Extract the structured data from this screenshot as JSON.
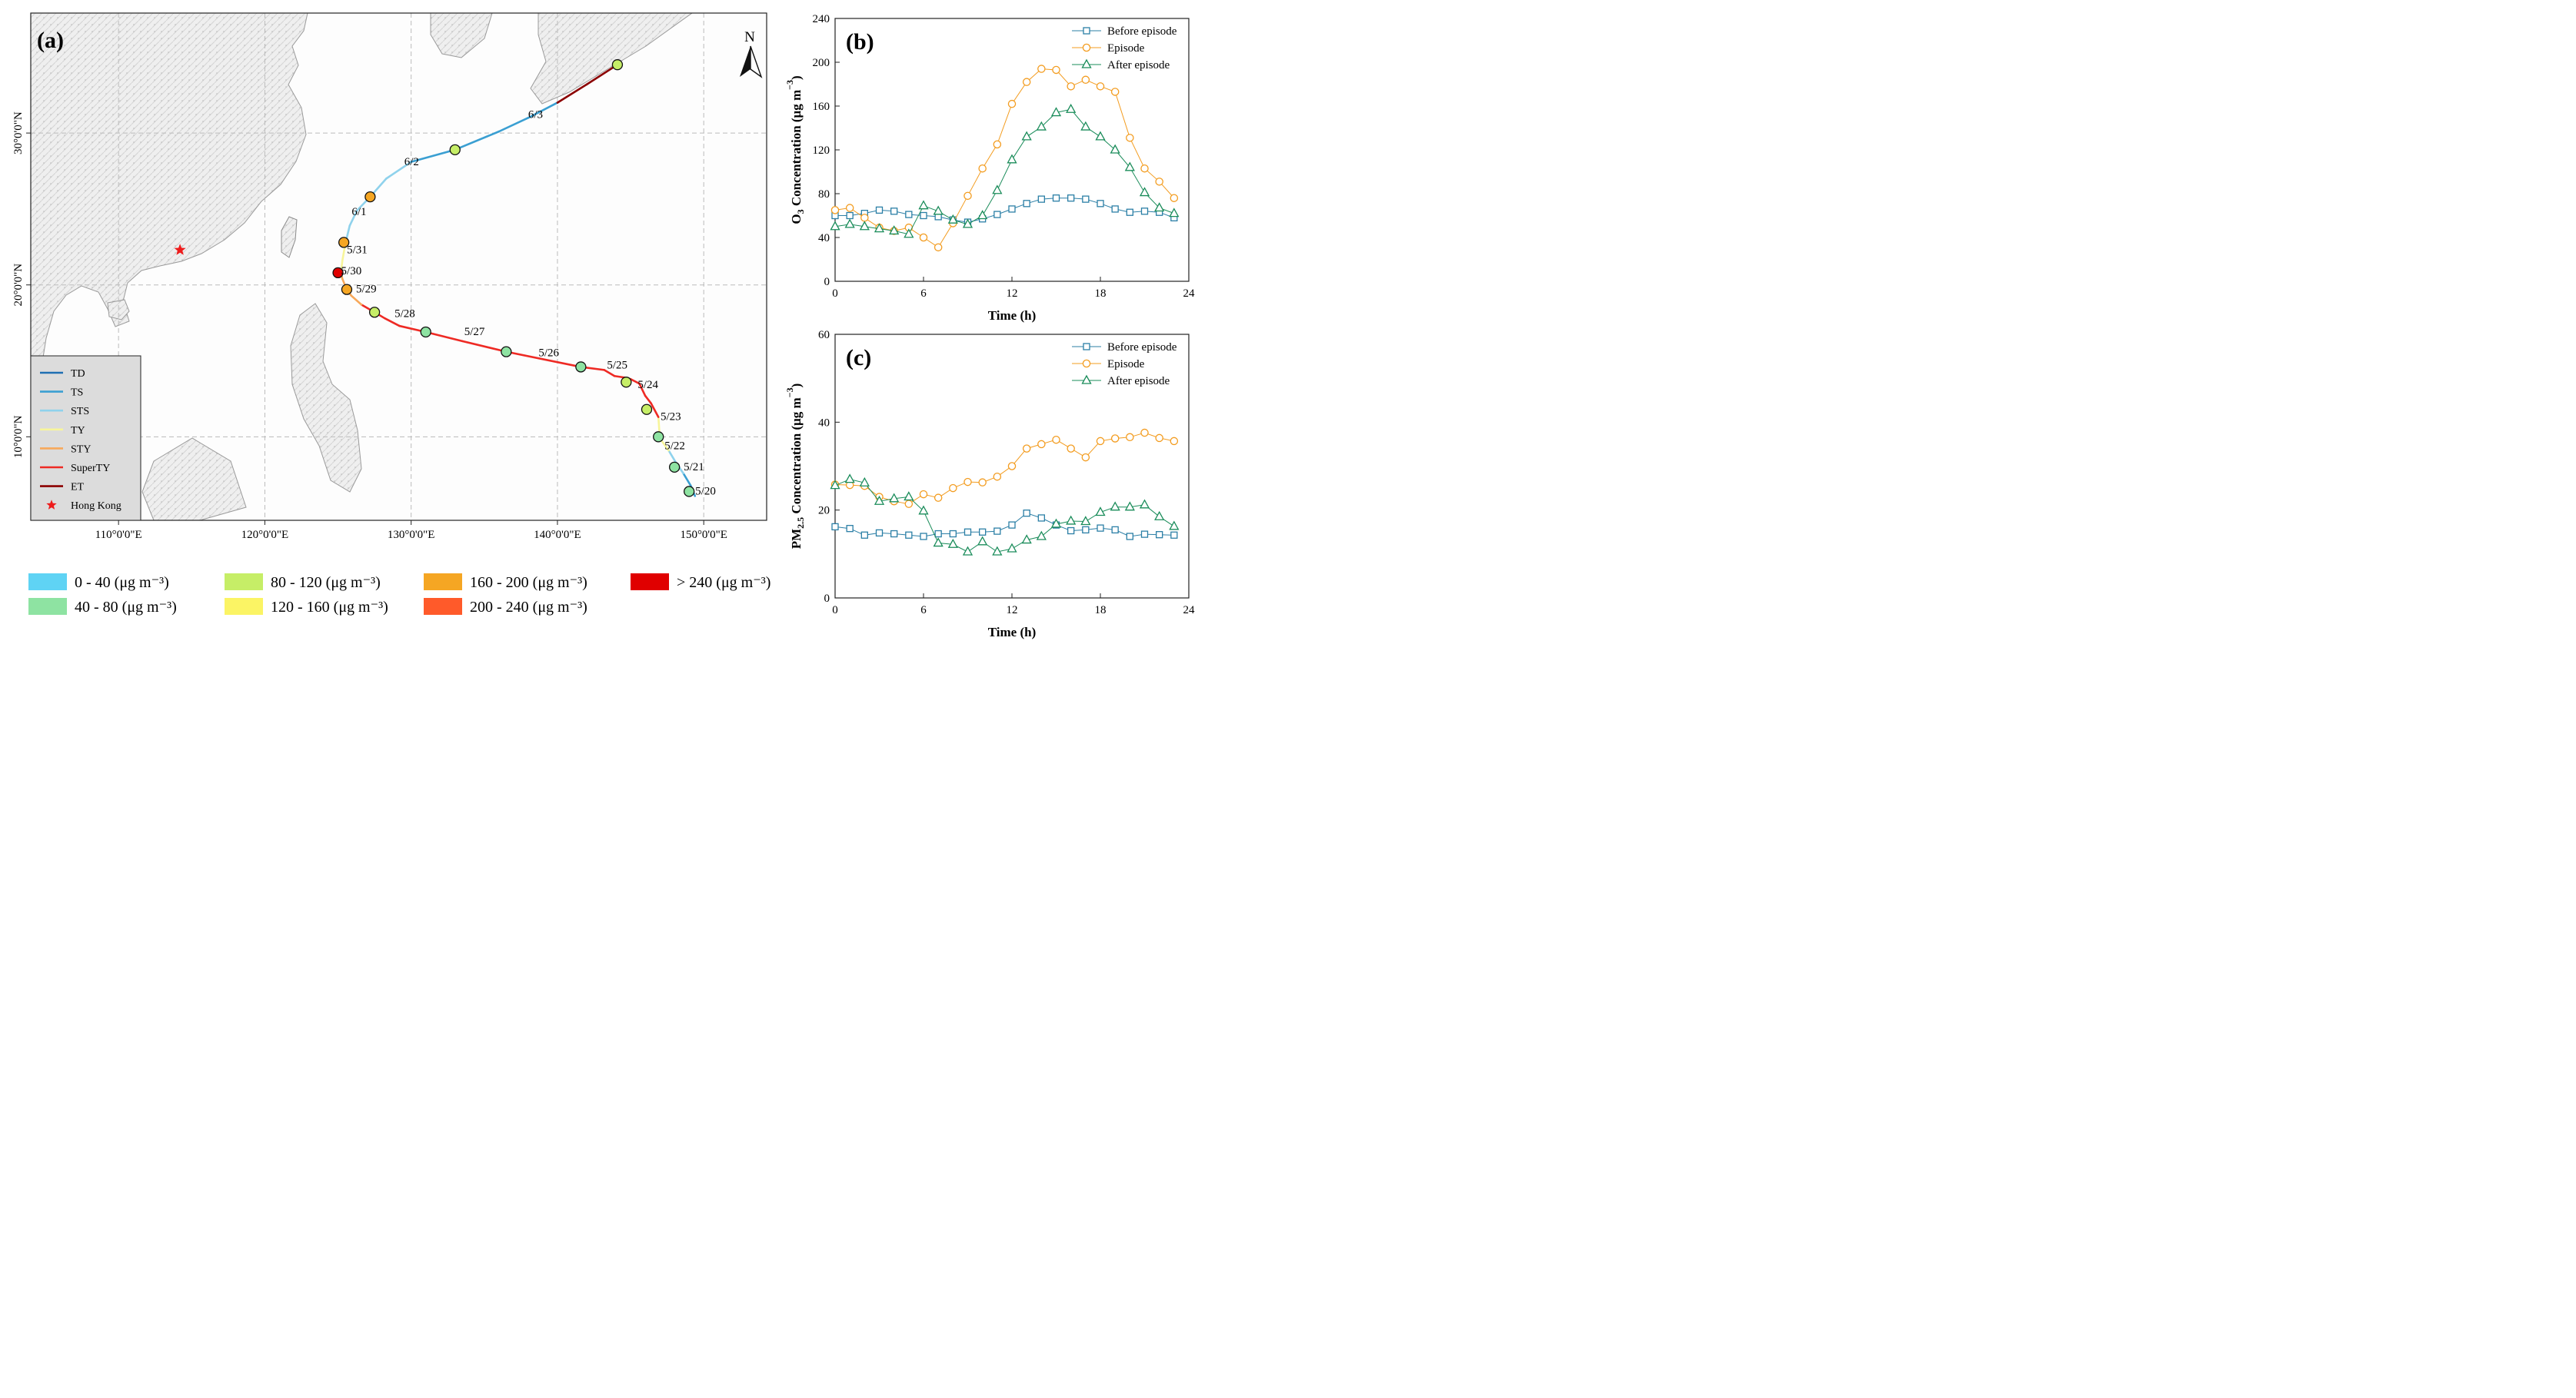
{
  "chart_data": [
    {
      "type": "map",
      "panel_label": "(a)",
      "north_label": "N",
      "lon_ticks": [
        "110°0'0\"E",
        "120°0'0\"E",
        "130°0'0\"E",
        "140°0'0\"E",
        "150°0'0\"E"
      ],
      "lon_values": [
        110,
        120,
        130,
        140,
        150
      ],
      "lat_ticks": [
        "30°0'0\"N",
        "20°0'0\"N",
        "10°0'0\"N"
      ],
      "lat_values": [
        30,
        20,
        10
      ],
      "extent": {
        "lon": [
          104,
          154.3
        ],
        "lat": [
          4.5,
          37.9
        ]
      },
      "track_points": [
        {
          "lon": 149.4,
          "lat": 6.1,
          "cls": "TS"
        },
        {
          "lon": 149.1,
          "lat": 6.8,
          "cls": "TS"
        },
        {
          "lon": 148.6,
          "lat": 7.6,
          "cls": "STS"
        },
        {
          "lon": 148.1,
          "lat": 8.3,
          "cls": "STS"
        },
        {
          "lon": 147.6,
          "lat": 9.1,
          "cls": "TY"
        },
        {
          "lon": 147.0,
          "lat": 9.9,
          "cls": "TY"
        },
        {
          "lon": 146.9,
          "lat": 11.3,
          "cls": "SuperTY"
        },
        {
          "lon": 146.4,
          "lat": 12.2,
          "cls": "SuperTY"
        },
        {
          "lon": 146.0,
          "lat": 12.7,
          "cls": "SuperTY"
        },
        {
          "lon": 145.6,
          "lat": 13.5,
          "cls": "SuperTY"
        },
        {
          "lon": 145.0,
          "lat": 13.8,
          "cls": "SuperTY"
        },
        {
          "lon": 144.6,
          "lat": 13.9,
          "cls": "SuperTY"
        },
        {
          "lon": 143.9,
          "lat": 14.0,
          "cls": "SuperTY"
        },
        {
          "lon": 143.2,
          "lat": 14.4,
          "cls": "SuperTY"
        },
        {
          "lon": 141.6,
          "lat": 14.6,
          "cls": "SuperTY"
        },
        {
          "lon": 136.5,
          "lat": 15.6,
          "cls": "SuperTY"
        },
        {
          "lon": 133.5,
          "lat": 16.3,
          "cls": "SuperTY"
        },
        {
          "lon": 131.0,
          "lat": 16.9,
          "cls": "SuperTY"
        },
        {
          "lon": 129.2,
          "lat": 17.3,
          "cls": "SuperTY"
        },
        {
          "lon": 128.2,
          "lat": 17.8,
          "cls": "SuperTY"
        },
        {
          "lon": 127.5,
          "lat": 18.2,
          "cls": "SuperTY"
        },
        {
          "lon": 126.6,
          "lat": 18.7,
          "cls": "STY"
        },
        {
          "lon": 125.9,
          "lat": 19.3,
          "cls": "STY"
        },
        {
          "lon": 125.6,
          "lat": 19.7,
          "cls": "STY"
        },
        {
          "lon": 125.3,
          "lat": 20.4,
          "cls": "STY"
        },
        {
          "lon": 125.2,
          "lat": 20.8,
          "cls": "TY"
        },
        {
          "lon": 125.3,
          "lat": 21.6,
          "cls": "TY"
        },
        {
          "lon": 125.5,
          "lat": 22.7,
          "cls": "STS"
        },
        {
          "lon": 125.8,
          "lat": 23.9,
          "cls": "STS"
        },
        {
          "lon": 126.3,
          "lat": 24.9,
          "cls": "STS"
        },
        {
          "lon": 127.2,
          "lat": 25.8,
          "cls": "STS"
        },
        {
          "lon": 128.3,
          "lat": 27.0,
          "cls": "STS"
        },
        {
          "lon": 130.0,
          "lat": 28.1,
          "cls": "TS"
        },
        {
          "lon": 133.0,
          "lat": 28.9,
          "cls": "TS"
        },
        {
          "lon": 136.0,
          "lat": 30.1,
          "cls": "TS"
        },
        {
          "lon": 138.0,
          "lat": 31.0,
          "cls": "TS"
        },
        {
          "lon": 140.0,
          "lat": 32.0,
          "cls": "ET"
        },
        {
          "lon": 142.0,
          "lat": 33.2,
          "cls": "ET"
        },
        {
          "lon": 144.1,
          "lat": 34.5,
          "cls": "ET"
        }
      ],
      "track_colors": {
        "TD": "#1f6fb2",
        "TS": "#3a9fd2",
        "STS": "#8fd2ec",
        "TY": "#f7f59a",
        "STY": "#f7a85a",
        "SuperTY": "#ee2a24",
        "ET": "#8b0000"
      },
      "daily_markers": [
        {
          "label": "5/20",
          "lon": 149.0,
          "lat": 6.4,
          "conc_class": 1,
          "lab_dx": 8,
          "lab_dy": 4
        },
        {
          "label": "5/21",
          "lon": 148.0,
          "lat": 8.0,
          "conc_class": 1,
          "lab_dx": 12,
          "lab_dy": 4
        },
        {
          "label": "5/22",
          "lon": 146.9,
          "lat": 10.0,
          "conc_class": 1,
          "lab_dx": 8,
          "lab_dy": 16
        },
        {
          "label": "5/23",
          "lon": 146.1,
          "lat": 11.8,
          "conc_class": 2,
          "lab_dx": 18,
          "lab_dy": 14
        },
        {
          "label": "5/24",
          "lon": 144.7,
          "lat": 13.6,
          "conc_class": 2,
          "lab_dx": 15,
          "lab_dy": 8
        },
        {
          "label": "5/25",
          "lon": 141.6,
          "lat": 14.6,
          "conc_class": 1,
          "lab_dx": 34,
          "lab_dy": 2
        },
        {
          "label": "5/26",
          "lon": 136.5,
          "lat": 15.6,
          "conc_class": 1,
          "lab_dx": 42,
          "lab_dy": 6
        },
        {
          "label": "5/27",
          "lon": 131.0,
          "lat": 16.9,
          "conc_class": 1,
          "lab_dx": 50,
          "lab_dy": 4
        },
        {
          "label": "5/28",
          "lon": 127.5,
          "lat": 18.2,
          "conc_class": 2,
          "lab_dx": 26,
          "lab_dy": 6
        },
        {
          "label": "5/29",
          "lon": 125.6,
          "lat": 19.7,
          "conc_class": 4,
          "lab_dx": 12,
          "lab_dy": 4
        },
        {
          "label": "5/30",
          "lon": 125.0,
          "lat": 20.8,
          "conc_class": 6,
          "lab_dx": 4,
          "lab_dy": 2
        },
        {
          "label": "5/31",
          "lon": 125.4,
          "lat": 22.8,
          "conc_class": 4,
          "lab_dx": 4,
          "lab_dy": 14
        },
        {
          "label": "6/1",
          "lon": 127.2,
          "lat": 25.8,
          "conc_class": 4,
          "lab_dx": -24,
          "lab_dy": 24
        },
        {
          "label": "6/2",
          "lon": 133.0,
          "lat": 28.9,
          "conc_class": 2,
          "lab_dx": -66,
          "lab_dy": 20
        },
        {
          "label": "6/3",
          "lon": 138.0,
          "lat": 31.0,
          "conc_class": -1,
          "lab_dx": 0,
          "lab_dy": 0
        },
        {
          "label": "",
          "lon": 144.1,
          "lat": 34.5,
          "conc_class": 2,
          "lab_dx": 0,
          "lab_dy": 0
        }
      ],
      "hong_kong": {
        "lon": 114.2,
        "lat": 22.3,
        "color": "#ee1c1c"
      },
      "legend": {
        "entries": [
          {
            "label": "TD",
            "key": "TD"
          },
          {
            "label": "TS",
            "key": "TS"
          },
          {
            "label": "STS",
            "key": "STS"
          },
          {
            "label": "TY",
            "key": "TY"
          },
          {
            "label": "STY",
            "key": "STY"
          },
          {
            "label": "SuperTY",
            "key": "SuperTY"
          },
          {
            "label": "ET",
            "key": "ET"
          },
          {
            "label": "Hong Kong",
            "key": "star"
          }
        ],
        "placement": "bottom-left"
      },
      "concentration_legend": [
        {
          "label": "0 - 40 (μg m⁻³)",
          "color": "#5fd3f4"
        },
        {
          "label": "40 - 80 (μg m⁻³)",
          "color": "#8ee3a2"
        },
        {
          "label": "80 - 120 (μg m⁻³)",
          "color": "#c6ee67"
        },
        {
          "label": "120 - 160 (μg m⁻³)",
          "color": "#fbf464"
        },
        {
          "label": "160 - 200 (μg m⁻³)",
          "color": "#f5a623"
        },
        {
          "label": "200 - 240 (μg m⁻³)",
          "color": "#ff5a2a"
        },
        {
          "label": "> 240 (μg m⁻³)",
          "color": "#e00000"
        }
      ]
    },
    {
      "type": "line",
      "panel_label": "(b)",
      "xlabel": "Time (h)",
      "ylabel_main": "O",
      "ylabel_sub": "3",
      "ylabel_rest": " Concentration (μg m",
      "ylabel_sup": "−3",
      "ylabel_end": ")",
      "xlim": [
        0,
        24
      ],
      "ylim": [
        0,
        240
      ],
      "xticks": [
        0,
        6,
        12,
        18,
        24
      ],
      "yticks": [
        0,
        40,
        80,
        120,
        160,
        200,
        240
      ],
      "x": [
        0,
        1,
        2,
        3,
        4,
        5,
        6,
        7,
        8,
        9,
        10,
        11,
        12,
        13,
        14,
        15,
        16,
        17,
        18,
        19,
        20,
        21,
        22,
        23
      ],
      "series": [
        {
          "name": "Before episode",
          "marker": "square",
          "color": "#2b7fa6",
          "values": [
            60,
            60,
            62,
            65,
            64,
            61,
            60,
            59,
            56,
            54,
            57,
            61,
            66,
            71,
            75,
            76,
            76,
            75,
            71,
            66,
            63,
            64,
            63,
            58
          ]
        },
        {
          "name": "Episode",
          "marker": "circle",
          "color": "#f39c1f",
          "values": [
            65,
            67,
            58,
            49,
            46,
            49,
            40,
            31,
            53,
            78,
            103,
            125,
            162,
            182,
            194,
            193,
            178,
            184,
            178,
            173,
            131,
            103,
            91,
            76
          ]
        },
        {
          "name": "After episode",
          "marker": "triangle",
          "color": "#1a8c5a",
          "values": [
            50,
            52,
            50,
            48,
            46,
            43,
            69,
            64,
            56,
            52,
            60,
            83,
            111,
            132,
            141,
            154,
            157,
            141,
            132,
            120,
            104,
            81,
            67,
            62
          ]
        }
      ],
      "legend_placement": "top-right"
    },
    {
      "type": "line",
      "panel_label": "(c)",
      "xlabel": "Time (h)",
      "ylabel_main": "PM",
      "ylabel_sub": "2.5",
      "ylabel_rest": " Concentration (μg m",
      "ylabel_sup": "−3",
      "ylabel_end": ")",
      "xlim": [
        0,
        24
      ],
      "ylim": [
        0,
        60
      ],
      "xticks": [
        0,
        6,
        12,
        18,
        24
      ],
      "yticks": [
        0,
        20,
        40,
        60
      ],
      "x": [
        0,
        1,
        2,
        3,
        4,
        5,
        6,
        7,
        8,
        9,
        10,
        11,
        12,
        13,
        14,
        15,
        16,
        17,
        18,
        19,
        20,
        21,
        22,
        23
      ],
      "series": [
        {
          "name": "Before episode",
          "marker": "square",
          "color": "#2b7fa6",
          "values": [
            16.2,
            15.8,
            14.3,
            14.8,
            14.6,
            14.3,
            14.0,
            14.6,
            14.6,
            15.0,
            15.0,
            15.2,
            16.6,
            19.3,
            18.2,
            16.6,
            15.3,
            15.5,
            15.9,
            15.5,
            14.0,
            14.5,
            14.4,
            14.3
          ]
        },
        {
          "name": "Episode",
          "marker": "circle",
          "color": "#f39c1f",
          "values": [
            25.8,
            25.7,
            25.5,
            23.0,
            22.0,
            21.4,
            23.6,
            22.8,
            25.0,
            26.4,
            26.3,
            27.6,
            30.0,
            34.0,
            35.0,
            36.0,
            34.0,
            32.0,
            35.7,
            36.3,
            36.6,
            37.6,
            36.4,
            35.7
          ]
        },
        {
          "name": "After episode",
          "marker": "triangle",
          "color": "#1a8c5a",
          "values": [
            25.6,
            27.0,
            26.2,
            22.0,
            22.6,
            23.0,
            19.8,
            12.5,
            12.2,
            10.5,
            12.8,
            10.5,
            11.2,
            13.2,
            14.0,
            16.8,
            17.5,
            17.4,
            19.5,
            20.7,
            20.7,
            21.2,
            18.5,
            16.3
          ]
        }
      ],
      "legend_placement": "top-right"
    }
  ]
}
